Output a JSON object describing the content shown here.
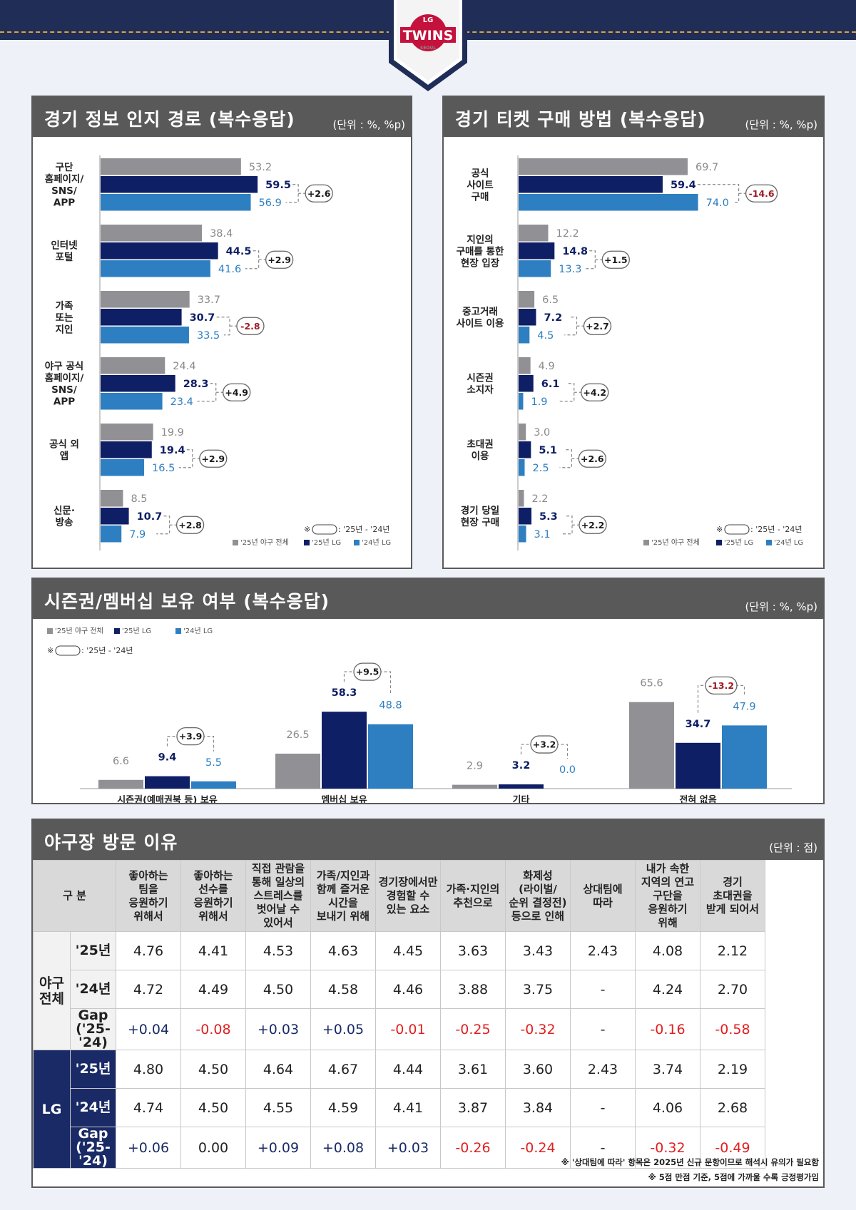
{
  "logo": {
    "top": "LG",
    "main": "TWINS",
    "sub": "SEOUL"
  },
  "colors": {
    "total": "#909095",
    "lg25": "#0f1f66",
    "lg24": "#2d7fc1",
    "neg": "#9e1b22"
  },
  "legend": {
    "total": "'25년 야구 전체",
    "lg25": "'25년 LG",
    "lg24": "'24년 LG",
    "gap_note": ": '25년 - '24년",
    "gap_mark": "※"
  },
  "panels": {
    "info": {
      "title": "경기 정보 인지 경로 (복수응답)",
      "unit": "(단위 : %, %p)"
    },
    "ticket": {
      "title": "경기 티켓 구매 방법 (복수응답)",
      "unit": "(단위 : %, %p)"
    },
    "season": {
      "title": "시즌권/멤버십 보유 여부 (복수응답)",
      "unit": "(단위 : %, %p)"
    },
    "visit": {
      "title": "야구장 방문 이유",
      "unit": "(단위 : 점)"
    }
  },
  "chart_data": [
    {
      "id": "info",
      "type": "bar",
      "orientation": "horizontal",
      "title": "경기 정보 인지 경로 (복수응답)",
      "categories": [
        [
          "구단",
          "홈페이지/",
          "SNS/",
          "APP"
        ],
        [
          "인터넷",
          "포털"
        ],
        [
          "가족",
          "또는",
          "지인"
        ],
        [
          "야구 공식",
          "홈페이지/",
          "SNS/",
          "APP"
        ],
        [
          "공식 외",
          "앱"
        ],
        [
          "신문·",
          "방송"
        ]
      ],
      "series": [
        {
          "name": "'25년 야구 전체",
          "values": [
            53.2,
            38.4,
            33.7,
            24.4,
            19.9,
            8.5
          ]
        },
        {
          "name": "'25년 LG",
          "values": [
            59.5,
            44.5,
            30.7,
            28.3,
            19.4,
            10.7
          ]
        },
        {
          "name": "'24년 LG",
          "values": [
            56.9,
            41.6,
            33.5,
            23.4,
            16.5,
            7.9
          ]
        }
      ],
      "gaps": [
        "+2.6",
        "+2.9",
        "-2.8",
        "+4.9",
        "+2.9",
        "+2.8"
      ],
      "xlim": [
        0,
        80
      ]
    },
    {
      "id": "ticket",
      "type": "bar",
      "orientation": "horizontal",
      "title": "경기 티켓 구매 방법 (복수응답)",
      "categories": [
        [
          "공식",
          "사이트",
          "구매"
        ],
        [
          "지인의",
          "구매를 통한",
          "현장 입장"
        ],
        [
          "중고거래",
          "사이트 이용"
        ],
        [
          "시즌권",
          "소지자"
        ],
        [
          "초대권",
          "이용"
        ],
        [
          "경기 당일",
          "현장 구매"
        ]
      ],
      "series": [
        {
          "name": "'25년 야구 전체",
          "values": [
            69.7,
            12.2,
            6.5,
            4.9,
            3.0,
            2.2
          ]
        },
        {
          "name": "'25년 LG",
          "values": [
            59.4,
            14.8,
            7.2,
            6.1,
            5.1,
            5.3
          ]
        },
        {
          "name": "'24년 LG",
          "values": [
            74.0,
            13.3,
            4.5,
            1.9,
            2.5,
            3.1
          ]
        }
      ],
      "gaps": [
        "-14.6",
        "+1.5",
        "+2.7",
        "+4.2",
        "+2.6",
        "+2.2"
      ],
      "xlim": [
        0,
        80
      ]
    },
    {
      "id": "season",
      "type": "bar",
      "orientation": "vertical",
      "title": "시즌권/멤버십 보유 여부 (복수응답)",
      "categories": [
        "시즌권(예매권북 등) 보유",
        "멤버십 보유",
        "기타",
        "전혀 없음"
      ],
      "series": [
        {
          "name": "'25년 야구 전체",
          "values": [
            6.6,
            26.5,
            2.9,
            65.6
          ]
        },
        {
          "name": "'25년 LG",
          "values": [
            9.4,
            58.3,
            3.2,
            34.7
          ]
        },
        {
          "name": "'24년 LG",
          "values": [
            5.5,
            48.8,
            0.0,
            47.9
          ]
        }
      ],
      "gaps": [
        "+3.9",
        "+9.5",
        "+3.2",
        "-13.2"
      ],
      "ylim": [
        0,
        70
      ]
    }
  ],
  "visit_table": {
    "corner": "구 분",
    "columns": [
      [
        "좋아하는",
        "팀을",
        "응원하기",
        "위해서"
      ],
      [
        "좋아하는",
        "선수를",
        "응원하기",
        "위해서"
      ],
      [
        "직접 관람을",
        "통해 일상의",
        "스트레스를",
        "벗어날 수",
        "있어서"
      ],
      [
        "가족/지인과",
        "함께 즐거운",
        "시간을",
        "보내기 위해"
      ],
      [
        "경기장에서만",
        "경험할 수",
        "있는 요소"
      ],
      [
        "가족·지인의",
        "추천으로"
      ],
      [
        "화제성",
        "(라이벌/",
        "순위 결정전)",
        "등으로 인해"
      ],
      [
        "상대팀에",
        "따라"
      ],
      [
        "내가 속한",
        "지역의 연고",
        "구단을",
        "응원하기",
        "위해"
      ],
      [
        "경기",
        "초대권을",
        "받게 되어서"
      ]
    ],
    "groups": [
      {
        "name": [
          "야구",
          "전체"
        ],
        "rows": [
          {
            "label": [
              "'25년"
            ],
            "values": [
              "4.76",
              "4.41",
              "4.53",
              "4.63",
              "4.45",
              "3.63",
              "3.43",
              "2.43",
              "4.08",
              "2.12"
            ]
          },
          {
            "label": [
              "'24년"
            ],
            "values": [
              "4.72",
              "4.49",
              "4.50",
              "4.58",
              "4.46",
              "3.88",
              "3.75",
              "-",
              "4.24",
              "2.70"
            ]
          },
          {
            "label": [
              "Gap",
              "('25-'24)"
            ],
            "values": [
              "+0.04",
              "-0.08",
              "+0.03",
              "+0.05",
              "-0.01",
              "-0.25",
              "-0.32",
              "-",
              "-0.16",
              "-0.58"
            ],
            "gap": true
          }
        ]
      },
      {
        "name": [
          "LG"
        ],
        "rows": [
          {
            "label": [
              "'25년"
            ],
            "values": [
              "4.80",
              "4.50",
              "4.64",
              "4.67",
              "4.44",
              "3.61",
              "3.60",
              "2.43",
              "3.74",
              "2.19"
            ]
          },
          {
            "label": [
              "'24년"
            ],
            "values": [
              "4.74",
              "4.50",
              "4.55",
              "4.59",
              "4.41",
              "3.87",
              "3.84",
              "-",
              "4.06",
              "2.68"
            ]
          },
          {
            "label": [
              "Gap",
              "('25-'24)"
            ],
            "values": [
              "+0.06",
              "0.00",
              "+0.09",
              "+0.08",
              "+0.03",
              "-0.26",
              "-0.24",
              "-",
              "-0.32",
              "-0.49"
            ],
            "gap": true
          }
        ]
      }
    ],
    "notes": [
      "※ '상대팀에 따라' 항목은 2025년 신규 문항이므로 해석시 유의가 필요함",
      "※ 5점 만점 기준, 5점에 가까울 수록 긍정평가임"
    ]
  }
}
